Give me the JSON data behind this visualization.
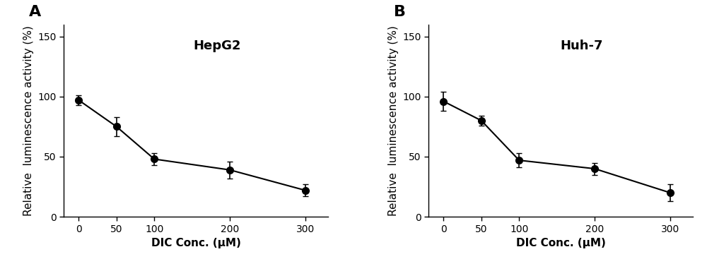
{
  "panel_A": {
    "label": "A",
    "title": "HepG2",
    "x": [
      0,
      50,
      100,
      200,
      300
    ],
    "y": [
      97,
      75,
      48,
      39,
      22
    ],
    "yerr": [
      4,
      8,
      5,
      7,
      5
    ],
    "xlabel": "DIC Conc. (μM)",
    "ylabel": "Relative  luminescence activity (%)",
    "ylim": [
      0,
      160
    ],
    "yticks": [
      0,
      50,
      100,
      150
    ],
    "xlim": [
      -20,
      330
    ]
  },
  "panel_B": {
    "label": "B",
    "title": "Huh-7",
    "x": [
      0,
      50,
      100,
      200,
      300
    ],
    "y": [
      96,
      80,
      47,
      40,
      20
    ],
    "yerr": [
      8,
      4,
      6,
      5,
      7
    ],
    "xlabel": "DIC Conc. (μM)",
    "ylabel": "Relative  luminescence activity (%)",
    "ylim": [
      0,
      160
    ],
    "yticks": [
      0,
      50,
      100,
      150
    ],
    "xlim": [
      -20,
      330
    ]
  },
  "line_color": "#000000",
  "marker": "o",
  "markersize": 7,
  "linewidth": 1.5,
  "capsize": 3,
  "elinewidth": 1.2,
  "label_fontsize": 16,
  "title_fontsize": 13,
  "tick_fontsize": 10,
  "axis_label_fontsize": 11
}
